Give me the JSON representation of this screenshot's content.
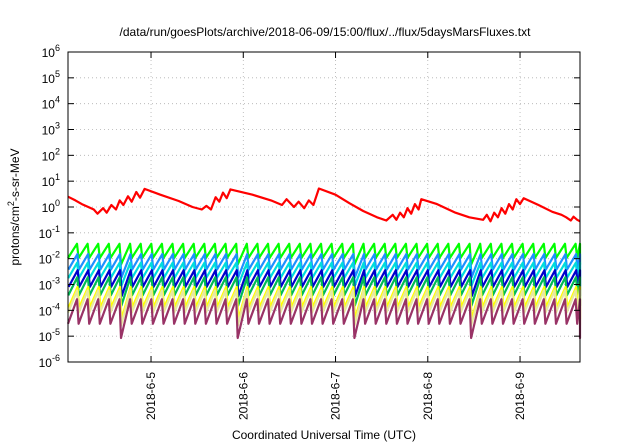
{
  "chart_data": {
    "type": "line",
    "title": "/data/run/goesPlots/archive/2018-06-09/15:00/flux/../flux/5daysMarsFluxes.txt",
    "xlabel": "Coordinated Universal Time (UTC)",
    "ylabel": "protons/cm2-s-sr-MeV",
    "ylabel_parts": {
      "base": "protons/cm",
      "sup": "2",
      "rest": "-s-sr-MeV"
    },
    "yscale": "log",
    "ylim": [
      1e-06,
      1000000.0
    ],
    "y_ticks": [
      {
        "base": "10",
        "exp": "-6"
      },
      {
        "base": "10",
        "exp": "-5"
      },
      {
        "base": "10",
        "exp": "-4"
      },
      {
        "base": "10",
        "exp": "-3"
      },
      {
        "base": "10",
        "exp": "-2"
      },
      {
        "base": "10",
        "exp": "-1"
      },
      {
        "base": "10",
        "exp": "0"
      },
      {
        "base": "10",
        "exp": "1"
      },
      {
        "base": "10",
        "exp": "2"
      },
      {
        "base": "10",
        "exp": "3"
      },
      {
        "base": "10",
        "exp": "4"
      },
      {
        "base": "10",
        "exp": "5"
      },
      {
        "base": "10",
        "exp": "6"
      }
    ],
    "x_range_days": [
      4.1,
      9.65
    ],
    "x_ticks": [
      {
        "label": "2018-6-5",
        "day": 5
      },
      {
        "label": "2018-6-6",
        "day": 6
      },
      {
        "label": "2018-6-7",
        "day": 7
      },
      {
        "label": "2018-6-8",
        "day": 8
      },
      {
        "label": "2018-6-9",
        "day": 9
      }
    ],
    "grid": true,
    "series": [
      {
        "color": "#ff0000",
        "mode": "points",
        "points": [
          [
            4.1,
            2.5
          ],
          [
            4.18,
            1.8
          ],
          [
            4.25,
            1.3
          ],
          [
            4.32,
            1.0
          ],
          [
            4.38,
            0.8
          ],
          [
            4.42,
            0.55
          ],
          [
            4.48,
            0.9
          ],
          [
            4.52,
            0.6
          ],
          [
            4.57,
            1.2
          ],
          [
            4.62,
            0.8
          ],
          [
            4.66,
            1.8
          ],
          [
            4.7,
            1.2
          ],
          [
            4.75,
            2.6
          ],
          [
            4.79,
            1.6
          ],
          [
            4.84,
            3.8
          ],
          [
            4.88,
            2.3
          ],
          [
            4.93,
            5.0
          ],
          [
            5.1,
            3.0
          ],
          [
            5.3,
            1.7
          ],
          [
            5.45,
            1.0
          ],
          [
            5.55,
            0.8
          ],
          [
            5.6,
            1.1
          ],
          [
            5.65,
            0.8
          ],
          [
            5.7,
            2.4
          ],
          [
            5.74,
            1.6
          ],
          [
            5.78,
            3.6
          ],
          [
            5.82,
            2.2
          ],
          [
            5.86,
            4.8
          ],
          [
            6.1,
            3.0
          ],
          [
            6.3,
            1.8
          ],
          [
            6.42,
            1.2
          ],
          [
            6.47,
            2.0
          ],
          [
            6.55,
            1.0
          ],
          [
            6.6,
            1.6
          ],
          [
            6.66,
            0.9
          ],
          [
            6.71,
            1.8
          ],
          [
            6.76,
            1.2
          ],
          [
            6.82,
            5.2
          ],
          [
            7.0,
            3.0
          ],
          [
            7.15,
            1.4
          ],
          [
            7.3,
            0.7
          ],
          [
            7.45,
            0.4
          ],
          [
            7.55,
            0.3
          ],
          [
            7.62,
            0.5
          ],
          [
            7.66,
            0.32
          ],
          [
            7.7,
            0.6
          ],
          [
            7.74,
            0.4
          ],
          [
            7.78,
            0.9
          ],
          [
            7.82,
            0.55
          ],
          [
            7.86,
            1.3
          ],
          [
            7.9,
            0.8
          ],
          [
            7.93,
            2.0
          ],
          [
            8.1,
            1.3
          ],
          [
            8.3,
            0.6
          ],
          [
            8.45,
            0.4
          ],
          [
            8.6,
            0.32
          ],
          [
            8.64,
            0.5
          ],
          [
            8.68,
            0.28
          ],
          [
            8.72,
            0.6
          ],
          [
            8.76,
            0.4
          ],
          [
            8.8,
            0.9
          ],
          [
            8.84,
            0.55
          ],
          [
            8.88,
            1.3
          ],
          [
            8.92,
            0.8
          ],
          [
            8.96,
            2.0
          ],
          [
            9.0,
            1.3
          ],
          [
            9.04,
            2.2
          ],
          [
            9.2,
            1.2
          ],
          [
            9.35,
            0.65
          ],
          [
            9.45,
            0.5
          ],
          [
            9.5,
            0.4
          ],
          [
            9.55,
            0.3
          ],
          [
            9.58,
            0.42
          ],
          [
            9.62,
            0.32
          ],
          [
            9.65,
            0.28
          ]
        ]
      },
      {
        "color": "#00ff00",
        "mode": "sawtooth",
        "level": 0.02,
        "amp": 0.55,
        "phase": 0.0,
        "dip_every": 11,
        "dip_depth": 0.25
      },
      {
        "color": "#1e90ff",
        "mode": "sawtooth",
        "level": 0.0075,
        "amp": 0.6,
        "phase": 0.04,
        "dip_every": 11,
        "dip_depth": 0.3
      },
      {
        "color": "#00dddd",
        "mode": "sawtooth",
        "level": 0.0035,
        "amp": 0.6,
        "phase": 0.02,
        "dip_every": 11,
        "dip_depth": 0.3
      },
      {
        "color": "#0000cc",
        "mode": "sawtooth",
        "level": 0.0017,
        "amp": 0.65,
        "phase": 0.06,
        "dip_every": 11,
        "dip_depth": 0.35
      },
      {
        "color": "#00bb55",
        "mode": "sawtooth",
        "level": 0.00085,
        "amp": 0.7,
        "phase": 0.03,
        "dip_every": 11,
        "dip_depth": 0.4
      },
      {
        "color": "#ffff00",
        "mode": "sawtooth",
        "level": 0.00032,
        "amp": 0.8,
        "phase": 0.05,
        "dip_every": 11,
        "dip_depth": 0.45
      },
      {
        "color": "#e8e8a0",
        "mode": "sawtooth",
        "level": 0.00022,
        "amp": 0.85,
        "phase": 0.01,
        "dip_every": 11,
        "dip_depth": 0.5
      },
      {
        "color": "#993366",
        "mode": "sawtooth",
        "level": 9e-05,
        "amp": 0.95,
        "phase": 0.0,
        "dip_every": 11,
        "dip_depth": 0.55
      }
    ]
  }
}
